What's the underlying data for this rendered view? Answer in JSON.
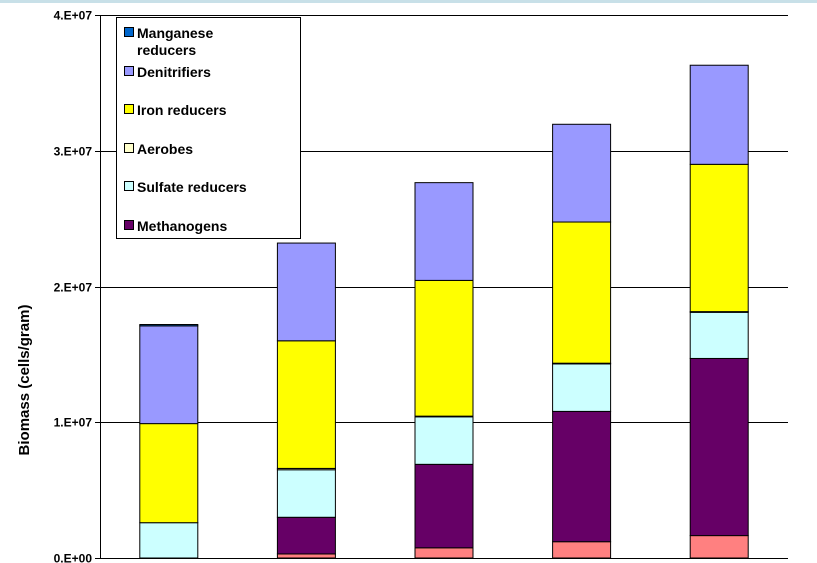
{
  "chart_data": {
    "type": "bar",
    "stacked": true,
    "title": "",
    "xlabel": "",
    "ylabel": "Biomass (cells/gram)",
    "ylim": [
      0,
      40000000
    ],
    "yticks": [
      {
        "value": 0,
        "label": "0.E+00"
      },
      {
        "value": 10000000,
        "label": "1.E+07"
      },
      {
        "value": 20000000,
        "label": "2.E+07"
      },
      {
        "value": 30000000,
        "label": "3.E+07"
      },
      {
        "value": 40000000,
        "label": "4.E+07"
      }
    ],
    "grid": true,
    "legend_position": "top-left",
    "bar_count": 5,
    "series": [
      {
        "key": "unlabeled",
        "color": "#FF8080",
        "values": [
          0,
          300000,
          750000,
          1200000,
          1650000
        ]
      },
      {
        "key": "methanogens",
        "color": "#660066",
        "values": [
          0,
          2700000,
          6150000,
          9600000,
          13050000
        ]
      },
      {
        "key": "sulfate",
        "color": "#CCFFFF",
        "values": [
          2600000,
          3500000,
          3500000,
          3500000,
          3400000
        ]
      },
      {
        "key": "aerobes",
        "color": "#FFFFCC",
        "values": [
          0,
          100000,
          50000,
          50000,
          50000
        ]
      },
      {
        "key": "iron",
        "color": "#FFFF00",
        "values": [
          7300000,
          9400000,
          10000000,
          10400000,
          10850000
        ]
      },
      {
        "key": "denitrifiers",
        "color": "#9999FF",
        "values": [
          7200000,
          7200000,
          7200000,
          7200000,
          7300000
        ]
      },
      {
        "key": "manganese",
        "color": "#0066CC",
        "values": [
          100000,
          0,
          0,
          0,
          0
        ]
      }
    ],
    "legend": [
      {
        "key": "manganese",
        "color": "#0066CC",
        "lines": [
          "Manganese",
          "reducers"
        ]
      },
      {
        "key": "denitrifiers",
        "color": "#9999FF",
        "lines": [
          "Denitrifiers"
        ]
      },
      {
        "key": "iron",
        "color": "#FFFF00",
        "lines": [
          "Iron reducers"
        ]
      },
      {
        "key": "aerobes",
        "color": "#FFFFCC",
        "lines": [
          "Aerobes"
        ]
      },
      {
        "key": "sulfate",
        "color": "#CCFFFF",
        "lines": [
          "Sulfate reducers"
        ]
      },
      {
        "key": "methanogens",
        "color": "#660066",
        "lines": [
          "Methanogens"
        ]
      }
    ]
  }
}
